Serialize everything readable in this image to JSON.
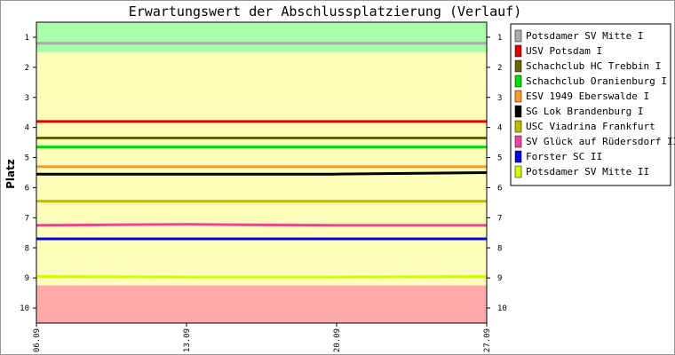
{
  "chart_data": {
    "type": "line",
    "title": "Erwartungswert der Abschlussplatzierung (Verlauf)",
    "xlabel": "",
    "ylabel": "Platz",
    "x_ticks": [
      "06.09",
      "13.09",
      "20.09",
      "27.09"
    ],
    "x_range": [
      "06.09",
      "27.09"
    ],
    "y_ticks": [
      1,
      2,
      3,
      4,
      5,
      6,
      7,
      8,
      9,
      10
    ],
    "ylim": [
      0.5,
      10.5
    ],
    "y_inverted": true,
    "grid": false,
    "legend_position": "right",
    "bands": [
      {
        "from": 0.5,
        "to": 1.5,
        "color": "#aaffaa"
      },
      {
        "from": 1.5,
        "to": 9.25,
        "color": "#ffffbb"
      },
      {
        "from": 9.25,
        "to": 10.5,
        "color": "#ffaaaa"
      }
    ],
    "series": [
      {
        "name": "Potsdamer SV Mitte I",
        "color": "#aaaaaa",
        "values": [
          1.2,
          1.2,
          1.2,
          1.2
        ]
      },
      {
        "name": "USV Potsdam I",
        "color": "#dd0000",
        "values": [
          3.8,
          3.8,
          3.8,
          3.8
        ]
      },
      {
        "name": "Schachclub HC Trebbin I",
        "color": "#666600",
        "values": [
          4.35,
          4.35,
          4.35,
          4.35
        ]
      },
      {
        "name": "Schachclub Oranienburg I",
        "color": "#00dd00",
        "values": [
          4.65,
          4.65,
          4.65,
          4.65
        ]
      },
      {
        "name": "ESV 1949 Eberswalde I",
        "color": "#ff9933",
        "values": [
          5.3,
          5.3,
          5.3,
          5.3
        ]
      },
      {
        "name": "SG Lok Brandenburg I",
        "color": "#000000",
        "values": [
          5.55,
          5.55,
          5.55,
          5.5
        ]
      },
      {
        "name": "USC Viadrina Frankfurt",
        "color": "#bbbb00",
        "values": [
          6.45,
          6.45,
          6.45,
          6.45
        ]
      },
      {
        "name": "SV Glück auf Rüdersdorf II",
        "color": "#ee4499",
        "values": [
          7.25,
          7.22,
          7.25,
          7.25
        ]
      },
      {
        "name": "Forster SC II",
        "color": "#0000dd",
        "values": [
          7.7,
          7.7,
          7.7,
          7.7
        ]
      },
      {
        "name": "Potsdamer SV Mitte II",
        "color": "#ccff00",
        "values": [
          8.95,
          8.97,
          8.97,
          8.95
        ]
      }
    ]
  }
}
